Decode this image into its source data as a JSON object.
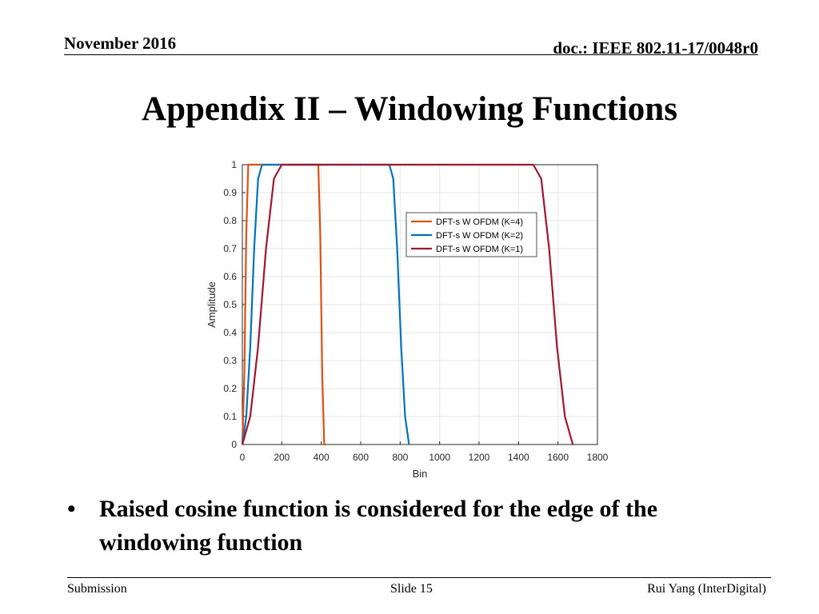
{
  "header": {
    "date": "November 2016",
    "doc": "doc.: IEEE 802.11-17/0048r0"
  },
  "title": "Appendix II – Windowing Functions",
  "bullets": [
    {
      "marker": "•",
      "text": "Raised cosine function is considered for the edge of the windowing function"
    }
  ],
  "footer": {
    "left": "Submission",
    "center": "Slide 15",
    "right": "Rui Yang (InterDigital)"
  },
  "chart_data": {
    "type": "line",
    "title": "",
    "xlabel": "Bin",
    "ylabel": "Amplitude",
    "xlim": [
      0,
      1800
    ],
    "ylim": [
      0,
      1
    ],
    "xticks": [
      0,
      200,
      400,
      600,
      800,
      1000,
      1200,
      1400,
      1600,
      1800
    ],
    "yticks": [
      0,
      0.1,
      0.2,
      0.3,
      0.4,
      0.5,
      0.6,
      0.7,
      0.8,
      0.9,
      1
    ],
    "grid": true,
    "legend_position": "top-right",
    "series": [
      {
        "name": "DFT-s W OFDM (K=4)",
        "color": "#D95319",
        "x": [
          0,
          10,
          20,
          30,
          40,
          50,
          375,
          385,
          395,
          405,
          415,
          425
        ],
        "y": [
          0,
          0.25,
          0.75,
          1,
          1,
          1,
          1,
          1,
          0.75,
          0.25,
          0,
          0
        ]
      },
      {
        "name": "DFT-s W OFDM (K=2)",
        "color": "#0072BD",
        "x": [
          0,
          20,
          40,
          60,
          80,
          100,
          745,
          765,
          785,
          805,
          825,
          845
        ],
        "y": [
          0,
          0.1,
          0.35,
          0.7,
          0.95,
          1,
          1,
          0.95,
          0.7,
          0.35,
          0.1,
          0
        ]
      },
      {
        "name": "DFT-s W OFDM (K=1)",
        "color": "#A2142F",
        "x": [
          0,
          40,
          80,
          120,
          160,
          200,
          1475,
          1515,
          1555,
          1595,
          1635,
          1675
        ],
        "y": [
          0,
          0.1,
          0.35,
          0.7,
          0.95,
          1,
          1,
          0.95,
          0.7,
          0.35,
          0.1,
          0
        ]
      }
    ]
  }
}
